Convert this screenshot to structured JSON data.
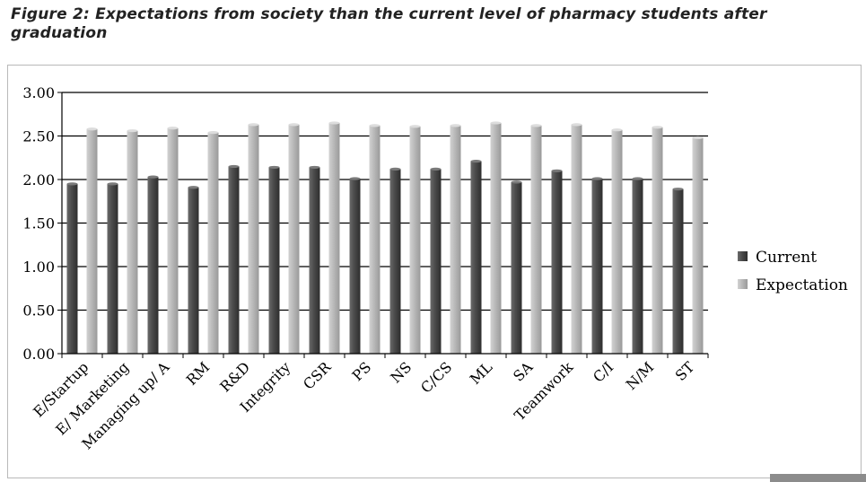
{
  "caption": "Figure 2: Expectations from society than the current level of pharmacy students after graduation",
  "chart_data": {
    "type": "bar",
    "categories": [
      "E/Startup",
      "E/ Marketing",
      "Managing up/ A",
      "RM",
      "R&D",
      "Integrity",
      "CSR",
      "PS",
      "NS",
      "C/CS",
      "ML",
      "SA",
      "Teamwork",
      "C/I",
      "N/M",
      "ST"
    ],
    "series": [
      {
        "name": "Current",
        "values": [
          1.95,
          1.95,
          2.03,
          1.91,
          2.15,
          2.14,
          2.14,
          2.01,
          2.12,
          2.12,
          2.21,
          1.97,
          2.1,
          2.01,
          2.01,
          1.89
        ]
      },
      {
        "name": "Expectation",
        "values": [
          2.58,
          2.56,
          2.59,
          2.54,
          2.63,
          2.63,
          2.65,
          2.62,
          2.61,
          2.62,
          2.65,
          2.62,
          2.63,
          2.57,
          2.6,
          2.48
        ]
      }
    ],
    "ylim": [
      0,
      3
    ],
    "yticks": [
      "0.00",
      "0.50",
      "1.00",
      "1.50",
      "2.00",
      "2.50",
      "3.00"
    ],
    "grid": true,
    "legend_position": "right",
    "colors": {
      "Current": "#4a4a4a",
      "Expectation": "#b8b8b8"
    }
  }
}
